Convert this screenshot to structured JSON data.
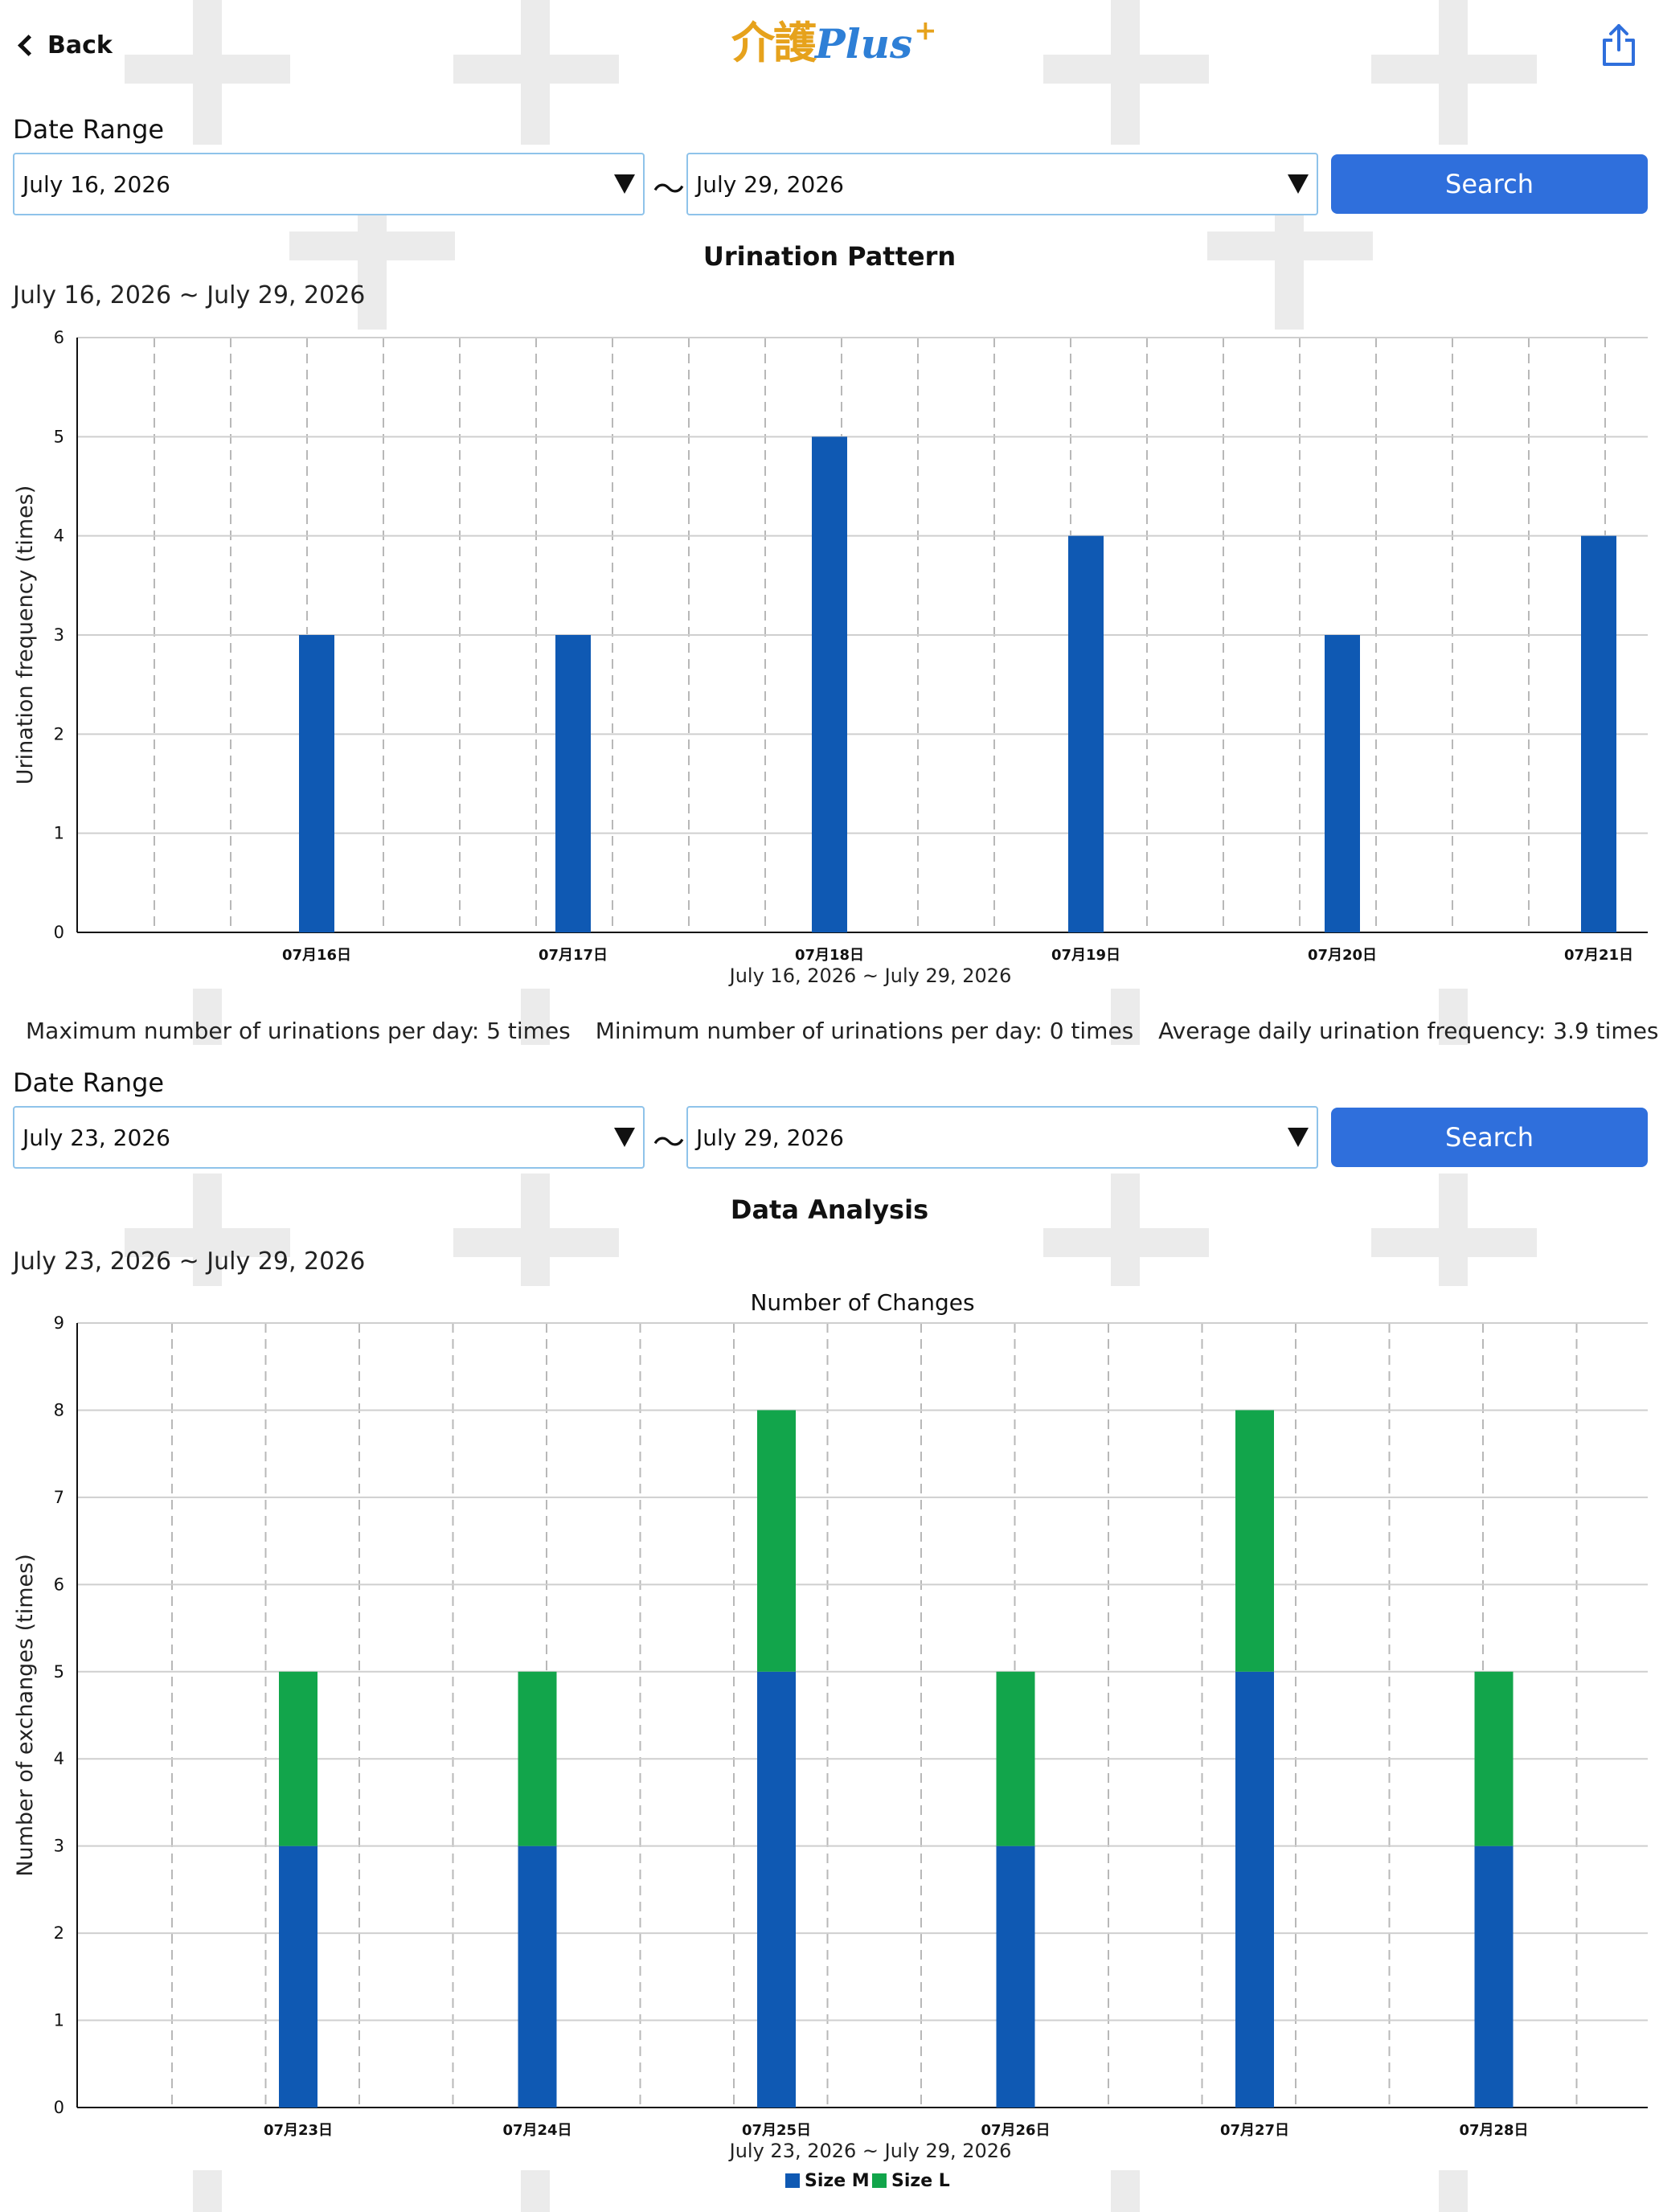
{
  "header": {
    "back_label": "Back",
    "logo_kanji": "介護",
    "logo_word": "Plus",
    "logo_sup": "+"
  },
  "section1": {
    "date_range_label": "Date Range",
    "start_date": "July 16, 2026",
    "end_date": "July 29, 2026",
    "tilde": "〜",
    "search_label": "Search",
    "chart_title": "Urination Pattern",
    "range_text": "July 16, 2026 ~ July 29, 2026",
    "stats": {
      "max": "Maximum number of urinations per day: 5 times",
      "min": "Minimum number of urinations per day: 0 times",
      "avg": "Average daily urination frequency: 3.9 times"
    }
  },
  "section2": {
    "date_range_label": "Date Range",
    "start_date": "July 23, 2026",
    "end_date": "July 29, 2026",
    "tilde": "〜",
    "search_label": "Search",
    "chart_title": "Data Analysis",
    "range_text": "July 23, 2026 ~ July 29, 2026"
  },
  "colors": {
    "bar_blue": "#0f59b3",
    "bar_green": "#12a54b",
    "button_blue": "#2f6fdc"
  },
  "chart_data": [
    {
      "type": "bar",
      "title": "",
      "xlabel": "July 16, 2026 ~ July 29, 2026",
      "ylabel": "Urination frequency (times)",
      "categories": [
        "07月16日",
        "07月17日",
        "07月18日",
        "07月19日",
        "07月20日",
        "07月21日"
      ],
      "values": [
        3,
        3,
        5,
        4,
        3,
        4
      ],
      "ylim": [
        0,
        6
      ],
      "yticks": [
        0,
        1,
        2,
        3,
        4,
        5,
        6
      ],
      "grid": true
    },
    {
      "type": "bar",
      "stacked": true,
      "title": "Number of Changes",
      "xlabel": "July 23, 2026 ~ July 29, 2026",
      "ylabel": "Number of exchanges (times)",
      "categories": [
        "07月23日",
        "07月24日",
        "07月25日",
        "07月26日",
        "07月27日",
        "07月28日"
      ],
      "series": [
        {
          "name": "Size M",
          "values": [
            3,
            3,
            5,
            3,
            5,
            3
          ]
        },
        {
          "name": "Size L",
          "values": [
            2,
            2,
            3,
            2,
            3,
            2
          ]
        }
      ],
      "ylim": [
        0,
        9
      ],
      "yticks": [
        0,
        1,
        2,
        3,
        4,
        5,
        6,
        7,
        8,
        9
      ],
      "grid": true,
      "legend": "bottom"
    }
  ]
}
